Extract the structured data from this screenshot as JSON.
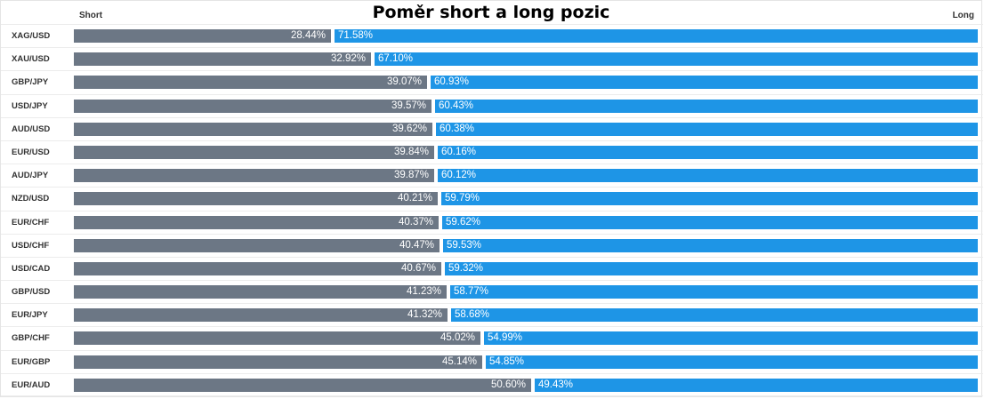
{
  "header": {
    "title": "Poměr short a long pozic",
    "short_label": "Short",
    "long_label": "Long"
  },
  "colors": {
    "short": "#6c7785",
    "long": "#1e95e6"
  },
  "chart_data": {
    "type": "bar",
    "title": "Poměr short a long pozic",
    "stacked": true,
    "orientation": "horizontal",
    "categories": [
      "XAG/USD",
      "XAU/USD",
      "GBP/JPY",
      "USD/JPY",
      "AUD/USD",
      "EUR/USD",
      "AUD/JPY",
      "NZD/USD",
      "EUR/CHF",
      "USD/CHF",
      "USD/CAD",
      "GBP/USD",
      "EUR/JPY",
      "GBP/CHF",
      "EUR/GBP",
      "EUR/AUD"
    ],
    "series": [
      {
        "name": "Short",
        "values": [
          28.44,
          32.92,
          39.07,
          39.57,
          39.62,
          39.84,
          39.87,
          40.21,
          40.37,
          40.47,
          40.67,
          41.23,
          41.32,
          45.02,
          45.14,
          50.6
        ]
      },
      {
        "name": "Long",
        "values": [
          71.58,
          67.1,
          60.93,
          60.43,
          60.38,
          60.16,
          60.12,
          59.79,
          59.62,
          59.53,
          59.32,
          58.77,
          58.68,
          54.99,
          54.85,
          49.43
        ]
      }
    ],
    "labels": {
      "short": [
        "28.44%",
        "32.92%",
        "39.07%",
        "39.57%",
        "39.62%",
        "39.84%",
        "39.87%",
        "40.21%",
        "40.37%",
        "40.47%",
        "40.67%",
        "41.23%",
        "41.32%",
        "45.02%",
        "45.14%",
        "50.60%"
      ],
      "long": [
        "71.58%",
        "67.10%",
        "60.93%",
        "60.43%",
        "60.38%",
        "60.16%",
        "60.12%",
        "59.79%",
        "59.62%",
        "59.53%",
        "59.32%",
        "58.77%",
        "58.68%",
        "54.99%",
        "54.85%",
        "49.43%"
      ]
    },
    "legend": "top"
  }
}
